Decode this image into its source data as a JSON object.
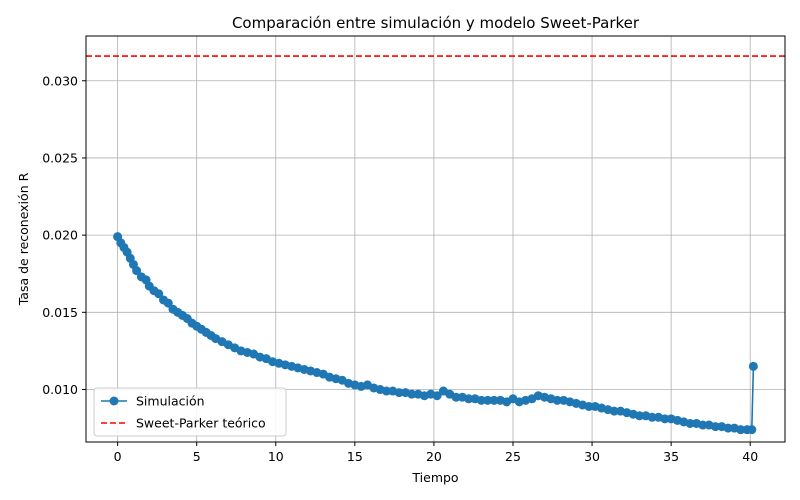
{
  "chart_data": {
    "type": "line",
    "title": "Comparación entre simulación y modelo Sweet-Parker",
    "xlabel": "Tiempo",
    "ylabel": "Tasa de reconexión R",
    "xlim": [
      -2.0,
      42.2
    ],
    "ylim": [
      0.0066,
      0.0329
    ],
    "xticks": [
      0,
      5,
      10,
      15,
      20,
      25,
      30,
      35,
      40
    ],
    "xtick_labels": [
      "0",
      "5",
      "10",
      "15",
      "20",
      "25",
      "30",
      "35",
      "40"
    ],
    "yticks": [
      0.01,
      0.015,
      0.02,
      0.025,
      0.03
    ],
    "ytick_labels": [
      "0.010",
      "0.015",
      "0.020",
      "0.025",
      "0.030"
    ],
    "grid": true,
    "legend_position": "lower-left",
    "colors": {
      "simulation": "#1f77b4",
      "sweet_parker": "#ff0000"
    },
    "series": [
      {
        "name": "Simulación",
        "style": "line-marker",
        "color": "#1f77b4",
        "x": [
          0.0,
          0.2,
          0.4,
          0.6,
          0.8,
          1.0,
          1.2,
          1.5,
          1.8,
          2.0,
          2.3,
          2.6,
          2.9,
          3.2,
          3.5,
          3.8,
          4.1,
          4.4,
          4.7,
          5.0,
          5.3,
          5.6,
          5.9,
          6.2,
          6.6,
          7.0,
          7.4,
          7.8,
          8.2,
          8.6,
          9.0,
          9.4,
          9.8,
          10.2,
          10.6,
          11.0,
          11.4,
          11.8,
          12.2,
          12.6,
          13.0,
          13.4,
          13.8,
          14.2,
          14.6,
          15.0,
          15.4,
          15.8,
          16.2,
          16.6,
          17.0,
          17.4,
          17.8,
          18.2,
          18.6,
          19.0,
          19.4,
          19.8,
          20.2,
          20.6,
          21.0,
          21.4,
          21.8,
          22.2,
          22.6,
          23.0,
          23.4,
          23.8,
          24.2,
          24.6,
          25.0,
          25.4,
          25.8,
          26.2,
          26.6,
          27.0,
          27.4,
          27.8,
          28.2,
          28.6,
          29.0,
          29.4,
          29.8,
          30.2,
          30.6,
          31.0,
          31.4,
          31.8,
          32.2,
          32.6,
          33.0,
          33.4,
          33.8,
          34.2,
          34.6,
          35.0,
          35.4,
          35.8,
          36.2,
          36.6,
          37.0,
          37.4,
          37.8,
          38.2,
          38.6,
          39.0,
          39.4,
          39.8,
          40.1,
          40.2
        ],
        "y": [
          0.0199,
          0.0195,
          0.0192,
          0.0189,
          0.0185,
          0.0181,
          0.0177,
          0.0173,
          0.0171,
          0.0167,
          0.0164,
          0.0162,
          0.0158,
          0.0156,
          0.0152,
          0.015,
          0.0148,
          0.0146,
          0.0143,
          0.0141,
          0.0139,
          0.0137,
          0.0135,
          0.0133,
          0.0131,
          0.0129,
          0.0127,
          0.0125,
          0.0124,
          0.0123,
          0.0121,
          0.012,
          0.0118,
          0.0117,
          0.0116,
          0.0115,
          0.0114,
          0.0113,
          0.0112,
          0.0111,
          0.011,
          0.0108,
          0.0107,
          0.0106,
          0.0104,
          0.0103,
          0.0102,
          0.0103,
          0.0101,
          0.01,
          0.0099,
          0.0099,
          0.0098,
          0.0098,
          0.0097,
          0.0097,
          0.0096,
          0.0097,
          0.0096,
          0.0099,
          0.0097,
          0.0095,
          0.0095,
          0.0094,
          0.0094,
          0.0093,
          0.0093,
          0.0093,
          0.0093,
          0.0092,
          0.0094,
          0.0092,
          0.0093,
          0.0094,
          0.0096,
          0.0095,
          0.0094,
          0.0093,
          0.0093,
          0.0092,
          0.0091,
          0.009,
          0.0089,
          0.0089,
          0.0088,
          0.0087,
          0.0086,
          0.0086,
          0.0085,
          0.0084,
          0.0083,
          0.0083,
          0.0082,
          0.0082,
          0.0081,
          0.0081,
          0.008,
          0.0079,
          0.0078,
          0.0078,
          0.0077,
          0.0077,
          0.0076,
          0.0076,
          0.0075,
          0.0075,
          0.0074,
          0.0074,
          0.0074,
          0.0115
        ]
      },
      {
        "name": "Sweet-Parker teórico",
        "style": "dashed",
        "color": "#ff0000",
        "y_constant": 0.0316
      }
    ]
  }
}
